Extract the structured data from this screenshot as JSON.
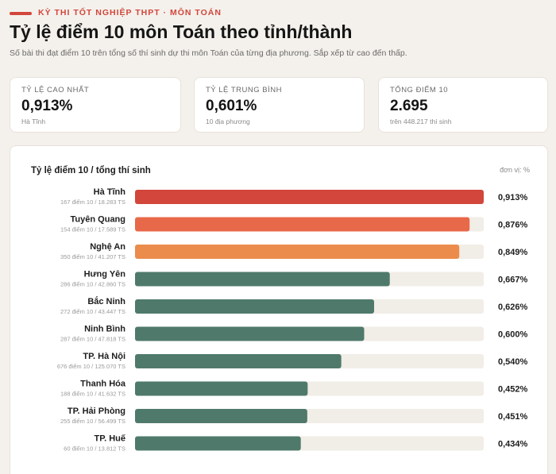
{
  "header": {
    "kicker": "KỲ THI TỐT NGHIỆP THPT · MÔN TOÁN",
    "title": "Tỷ lệ điểm 10 môn Toán theo tỉnh/thành",
    "subtitle": "Số bài thi đạt điểm 10 trên tổng số thí sinh dự thi môn Toán của từng địa phương. Sắp xếp từ cao đến thấp."
  },
  "stats": [
    {
      "label": "TỶ LỆ CAO NHẤT",
      "value": "0,913%",
      "note": "Hà Tĩnh"
    },
    {
      "label": "TỶ LỆ TRUNG BÌNH",
      "value": "0,601%",
      "note": "10 địa phương"
    },
    {
      "label": "TỔNG ĐIỂM 10",
      "value": "2.695",
      "note": "trên 448.217 thí sinh"
    }
  ],
  "chart_title": "Tỷ lệ điểm 10 / tổng thí sinh",
  "chart_unit": "đơn vị: %",
  "colors": {
    "accent": "#d2463b",
    "bar_top1": "#d2463b",
    "bar_top2": "#e8684a",
    "bar_top3": "#eb8c4c",
    "bar_rest": "#4f7a6b",
    "track": "#f1ede7"
  },
  "chart_data": {
    "type": "bar",
    "orientation": "horizontal",
    "title": "Tỷ lệ điểm 10 / tổng thí sinh",
    "unit": "%",
    "xlim": [
      0,
      0.913
    ],
    "categories": [
      "Hà Tĩnh",
      "Tuyên Quang",
      "Nghệ An",
      "Hưng Yên",
      "Bắc Ninh",
      "Ninh Bình",
      "TP. Hà Nội",
      "Thanh Hóa",
      "TP. Hải Phòng",
      "TP. Huế"
    ],
    "sublabels": [
      "167 điểm 10 / 18.283 TS",
      "154 điểm 10 / 17.589 TS",
      "350 điểm 10 / 41.207 TS",
      "286 điểm 10 / 42.860 TS",
      "272 điểm 10 / 43.447 TS",
      "287 điểm 10 / 47.818 TS",
      "676 điểm 10 / 125.070 TS",
      "188 điểm 10 / 41.632 TS",
      "255 điểm 10 / 56.499 TS",
      "60 điểm 10 / 13.812 TS"
    ],
    "values": [
      0.913,
      0.876,
      0.849,
      0.667,
      0.626,
      0.6,
      0.54,
      0.452,
      0.451,
      0.434
    ],
    "value_labels": [
      "0,913%",
      "0,876%",
      "0,849%",
      "0,667%",
      "0,626%",
      "0,600%",
      "0,540%",
      "0,452%",
      "0,451%",
      "0,434%"
    ]
  }
}
